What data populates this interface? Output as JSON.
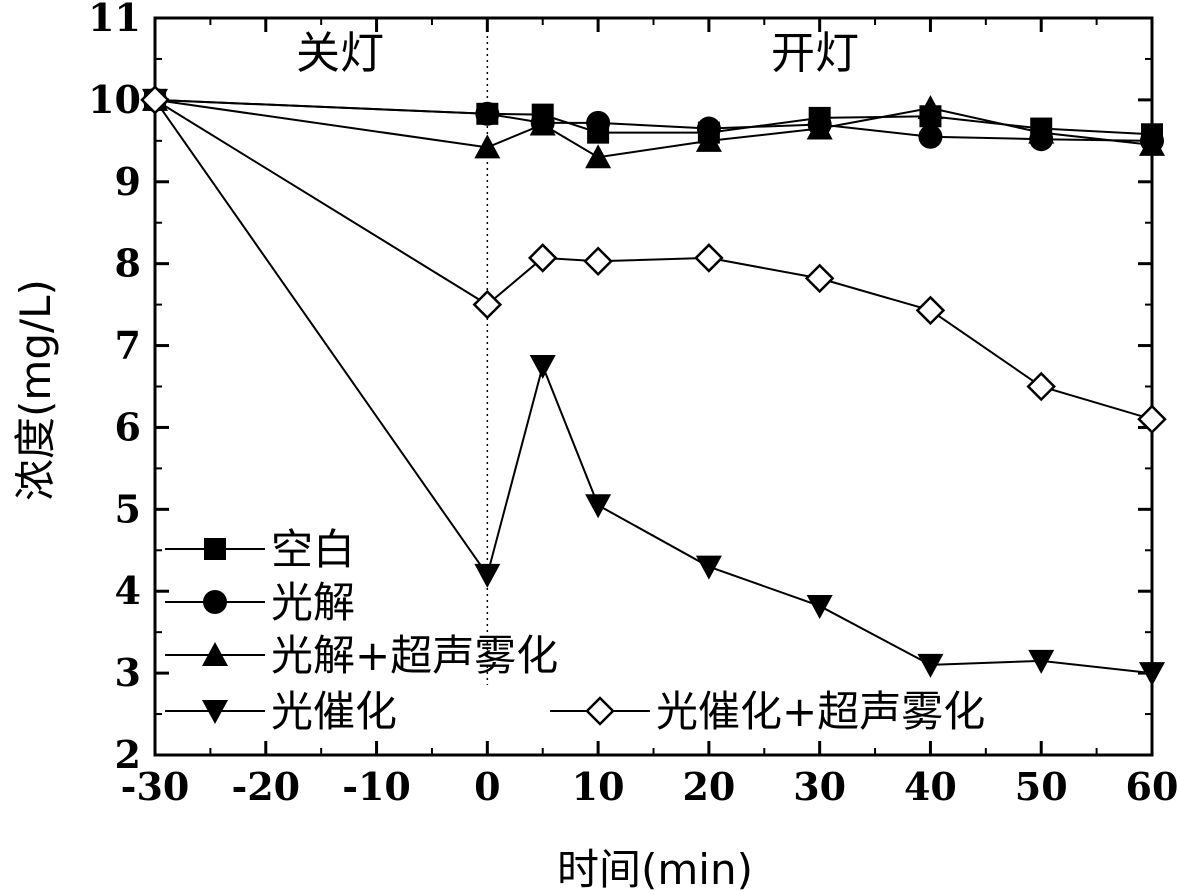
{
  "chart_data": {
    "type": "line",
    "title": "",
    "xlabel": "时间(min)",
    "ylabel": "浓度(mg/L)",
    "xlim": [
      -30,
      60
    ],
    "ylim": [
      2,
      11
    ],
    "xticks": [
      -30,
      -20,
      -10,
      0,
      10,
      20,
      30,
      40,
      50,
      60
    ],
    "yticks": [
      2,
      3,
      4,
      5,
      6,
      7,
      8,
      9,
      10,
      11
    ],
    "x": [
      -30,
      0,
      5,
      10,
      20,
      30,
      40,
      50,
      60
    ],
    "grid": false,
    "legend_position": "bottom-left",
    "series": [
      {
        "name": "空白",
        "marker": "square",
        "values": [
          10.0,
          9.83,
          9.82,
          9.6,
          9.6,
          9.78,
          9.8,
          9.65,
          9.58
        ]
      },
      {
        "name": "光解",
        "marker": "circle",
        "values": [
          10.0,
          9.83,
          9.72,
          9.72,
          9.65,
          9.7,
          9.55,
          9.52,
          9.5
        ]
      },
      {
        "name": "光解+超声雾化",
        "marker": "triangle-up",
        "values": [
          10.0,
          9.42,
          9.7,
          9.3,
          9.5,
          9.65,
          9.9,
          9.6,
          9.45
        ]
      },
      {
        "name": "光催化",
        "marker": "triangle-down",
        "values": [
          10.0,
          4.2,
          6.75,
          5.05,
          4.3,
          3.82,
          3.1,
          3.15,
          3.0
        ]
      },
      {
        "name": "光催化+超声雾化",
        "marker": "diamond-open",
        "values": [
          10.0,
          7.5,
          8.07,
          8.03,
          8.07,
          7.82,
          7.43,
          6.5,
          6.1
        ]
      }
    ],
    "annotations": [
      {
        "text": "关灯",
        "x": -15,
        "y": 10.5
      },
      {
        "text": "开灯",
        "x": 30,
        "y": 10.5
      }
    ],
    "divider_x": 0
  },
  "colors": {
    "line": "#000000",
    "background": "#ffffff"
  }
}
